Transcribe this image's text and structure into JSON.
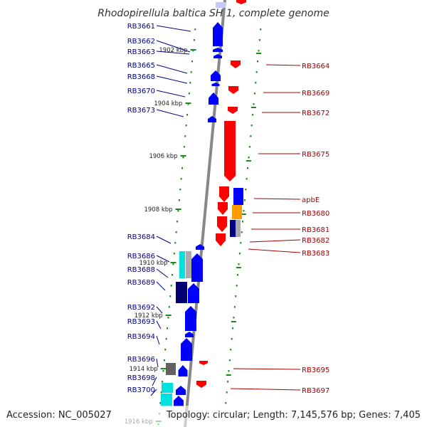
{
  "title": "Rhodopirellula baltica SH 1, complete genome",
  "footer": {
    "accession": "Accession: NC_005027",
    "summary": "Topology: circular; Length: 7,145,576 bp; Genes: 7,405"
  },
  "colors": {
    "forward": "#0000ff",
    "reverse": "#ff0000",
    "left_label": "#000080",
    "right_label": "#aa0000",
    "scale": "#1a8a1a",
    "backbone": "#888888"
  },
  "scale_marks": [
    {
      "label": "1902 kbp"
    },
    {
      "label": "1904 kbp"
    },
    {
      "label": "1906 kbp"
    },
    {
      "label": "1908 kbp"
    },
    {
      "label": "1910 kbp"
    },
    {
      "label": "1912 kbp"
    },
    {
      "label": "1914 kbp"
    },
    {
      "label": "1916 kbp"
    }
  ],
  "left_genes": [
    {
      "name": "RB3661"
    },
    {
      "name": "RB3662"
    },
    {
      "name": "RB3663"
    },
    {
      "name": "RB3665"
    },
    {
      "name": "RB3668"
    },
    {
      "name": "RB3670"
    },
    {
      "name": "RB3673"
    },
    {
      "name": "RB3684"
    },
    {
      "name": "RB3686"
    },
    {
      "name": "RB3688"
    },
    {
      "name": "RB3689"
    },
    {
      "name": "RB3692"
    },
    {
      "name": "RB3693"
    },
    {
      "name": "RB3694"
    },
    {
      "name": "RB3696"
    },
    {
      "name": "RB3698"
    },
    {
      "name": "RB3700"
    }
  ],
  "right_genes": [
    {
      "name": "RB3664"
    },
    {
      "name": "RB3669"
    },
    {
      "name": "RB3672"
    },
    {
      "name": "RB3675"
    },
    {
      "name": "apbE"
    },
    {
      "name": "RB3680"
    },
    {
      "name": "RB3681"
    },
    {
      "name": "RB3682"
    },
    {
      "name": "RB3683"
    },
    {
      "name": "RB3695"
    },
    {
      "name": "RB3697"
    }
  ]
}
